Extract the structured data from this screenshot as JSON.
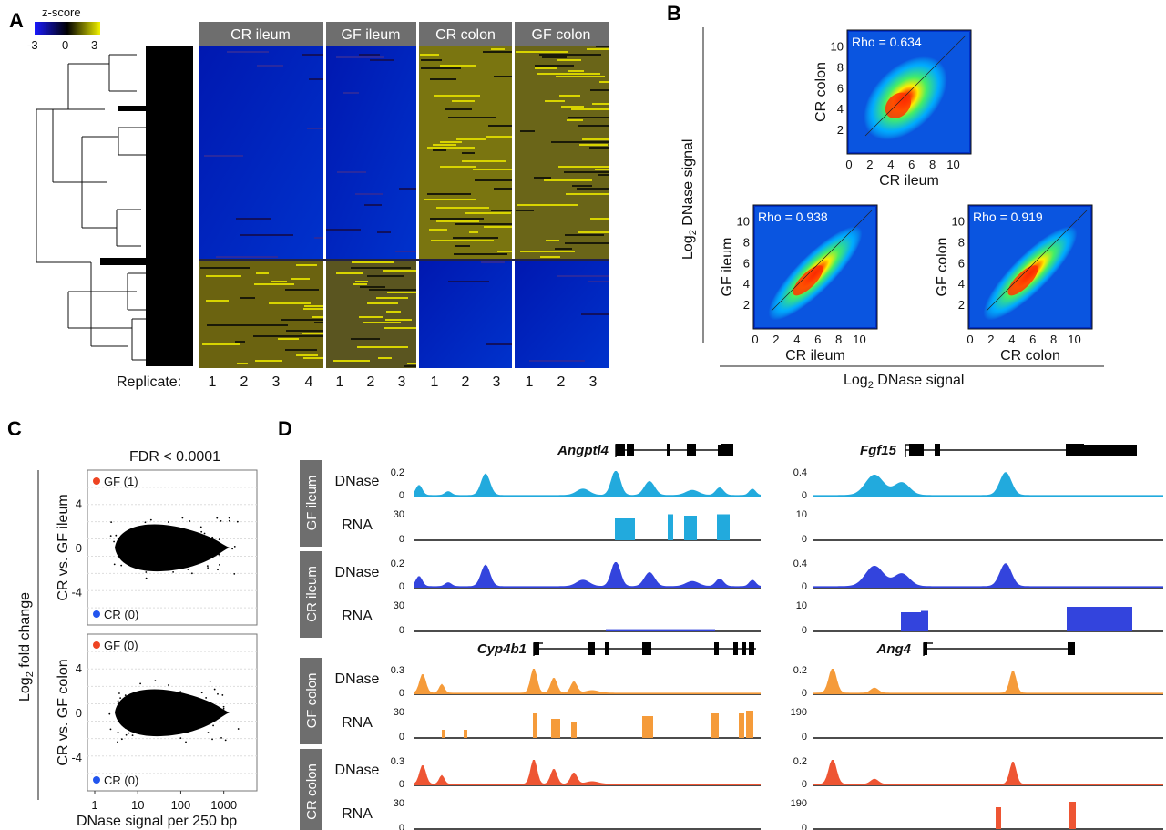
{
  "panels": [
    "A",
    "B",
    "C",
    "D"
  ],
  "panel_a": {
    "legend_title": "z-score",
    "legend_ticks": [
      "-3",
      "0",
      "3"
    ],
    "colors": {
      "low": "#1a1aff",
      "mid": "#000000",
      "high": "#f2f200"
    },
    "groups": [
      {
        "label": "CR ileum",
        "replicates": [
          "1",
          "2",
          "3",
          "4"
        ]
      },
      {
        "label": "GF ileum",
        "replicates": [
          "1",
          "2",
          "3"
        ]
      },
      {
        "label": "CR colon",
        "replicates": [
          "1",
          "2",
          "3"
        ]
      },
      {
        "label": "GF colon",
        "replicates": [
          "1",
          "2",
          "3"
        ]
      }
    ],
    "replicate_label": "Replicate:"
  },
  "panel_b": {
    "shared_ylabel": "Log2 DNase signal",
    "shared_xlabel": "Log2 DNase signal",
    "ticks": [
      "0",
      "2",
      "4",
      "6",
      "8",
      "10"
    ],
    "yticks": [
      "2",
      "4",
      "6",
      "8",
      "10"
    ],
    "plots": [
      {
        "xlabel": "CR ileum",
        "ylabel": "CR colon",
        "rho": "Rho = 0.634"
      },
      {
        "xlabel": "CR ileum",
        "ylabel": "GF ileum",
        "rho": "Rho = 0.938"
      },
      {
        "xlabel": "CR colon",
        "ylabel": "GF colon",
        "rho": "Rho = 0.919"
      }
    ]
  },
  "panel_c": {
    "title": "FDR < 0.0001",
    "ylabel": "Log2 fold change",
    "xlabel": "DNase signal per 250 bp",
    "xticks": [
      "1",
      "10",
      "100",
      "1000"
    ],
    "plots": [
      {
        "side_label": "CR vs. GF ileum",
        "yticks": [
          "4",
          "0",
          "-4"
        ],
        "up": "GF (1)",
        "down": "CR (0)"
      },
      {
        "side_label": "CR vs. GF colon",
        "yticks": [
          "4",
          "0",
          "-4"
        ],
        "up": "GF (0)",
        "down": "CR (0)"
      }
    ],
    "colors": {
      "up": "#ee4422",
      "down": "#2255ee"
    }
  },
  "panel_d": {
    "genes_top": [
      "Angptl4",
      "Fgf15"
    ],
    "genes_bottom": [
      "Cyp4b1",
      "Ang4"
    ],
    "groups": [
      {
        "label": "GF ileum",
        "color": "#22aadd",
        "tracks": [
          {
            "name": "DNase",
            "left_max": "0.2",
            "right_max": "0.4"
          },
          {
            "name": "RNA",
            "left_max": "30",
            "right_max": "10"
          }
        ]
      },
      {
        "label": "CR ileum",
        "color": "#3344dd",
        "tracks": [
          {
            "name": "DNase",
            "left_max": "0.2",
            "right_max": "0.4"
          },
          {
            "name": "RNA",
            "left_max": "30",
            "right_max": "10"
          }
        ]
      },
      {
        "label": "GF colon",
        "color": "#f59b3a",
        "tracks": [
          {
            "name": "DNase",
            "left_max": "0.3",
            "right_max": "0.2"
          },
          {
            "name": "RNA",
            "left_max": "30",
            "right_max": "190"
          }
        ]
      },
      {
        "label": "CR colon",
        "color": "#ee5533",
        "tracks": [
          {
            "name": "DNase",
            "left_max": "0.3",
            "right_max": "0.2"
          },
          {
            "name": "RNA",
            "left_max": "30",
            "right_max": "190"
          }
        ]
      }
    ],
    "zero": "0"
  }
}
